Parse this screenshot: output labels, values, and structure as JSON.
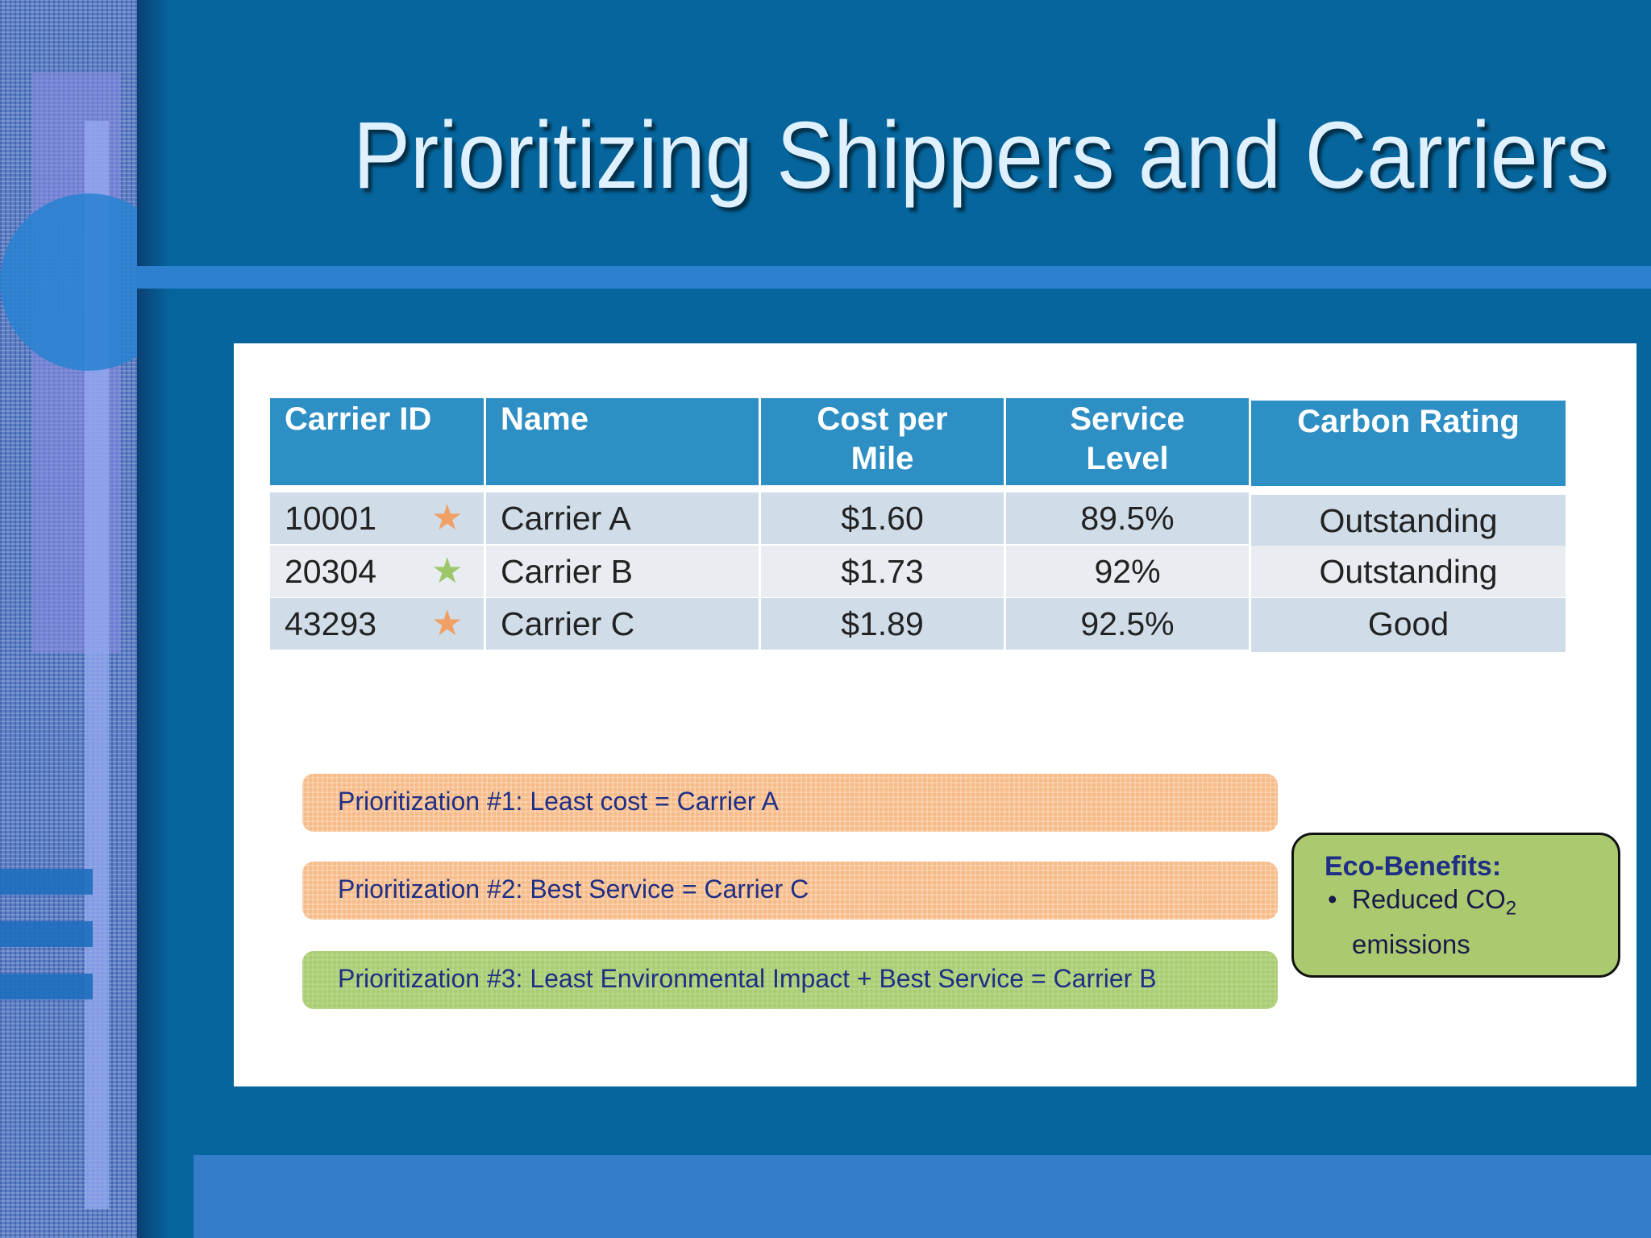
{
  "slide": {
    "title": "Prioritizing Shippers and Carriers"
  },
  "table": {
    "headers": [
      {
        "line1": "Carrier ID",
        "line2": ""
      },
      {
        "line1": "Name",
        "line2": ""
      },
      {
        "line1": "Cost per",
        "line2": "Mile"
      },
      {
        "line1": "Service",
        "line2": "Level"
      },
      {
        "line1": "Carbon Rating",
        "line2": ""
      }
    ],
    "rows": [
      {
        "id": "10001",
        "star": "★",
        "star_color": "#f0a064",
        "name": "Carrier A",
        "cost": "$1.60",
        "service": "89.5%",
        "carbon": "Outstanding"
      },
      {
        "id": "20304",
        "star": "★",
        "star_color": "#9cc86a",
        "name": "Carrier B",
        "cost": "$1.73",
        "service": "92%",
        "carbon": "Outstanding"
      },
      {
        "id": "43293",
        "star": "★",
        "star_color": "#f0a064",
        "name": "Carrier C",
        "cost": "$1.89",
        "service": "92.5%",
        "carbon": "Good"
      }
    ]
  },
  "prioritizations": [
    {
      "label": "Prioritization #1:  Least cost = Carrier A",
      "color": "#f6bb88"
    },
    {
      "label": "Prioritization #2:  Best Service = Carrier C",
      "color": "#f6bb88"
    },
    {
      "label": "Prioritization #3:  Least Environmental Impact + Best Service = Carrier B",
      "color": "#a9cd72"
    }
  ],
  "eco_benefits": {
    "heading": "Eco-Benefits:",
    "bullet_symbol": "•",
    "bullet_line1": "Reduced CO",
    "bullet_subscript": "2",
    "bullet_line2": "emissions"
  },
  "colors": {
    "background": "#05659c",
    "accent_bar": "#2d7fd0",
    "table_header": "#2d8fc4",
    "title_text": "#dff0ff"
  }
}
